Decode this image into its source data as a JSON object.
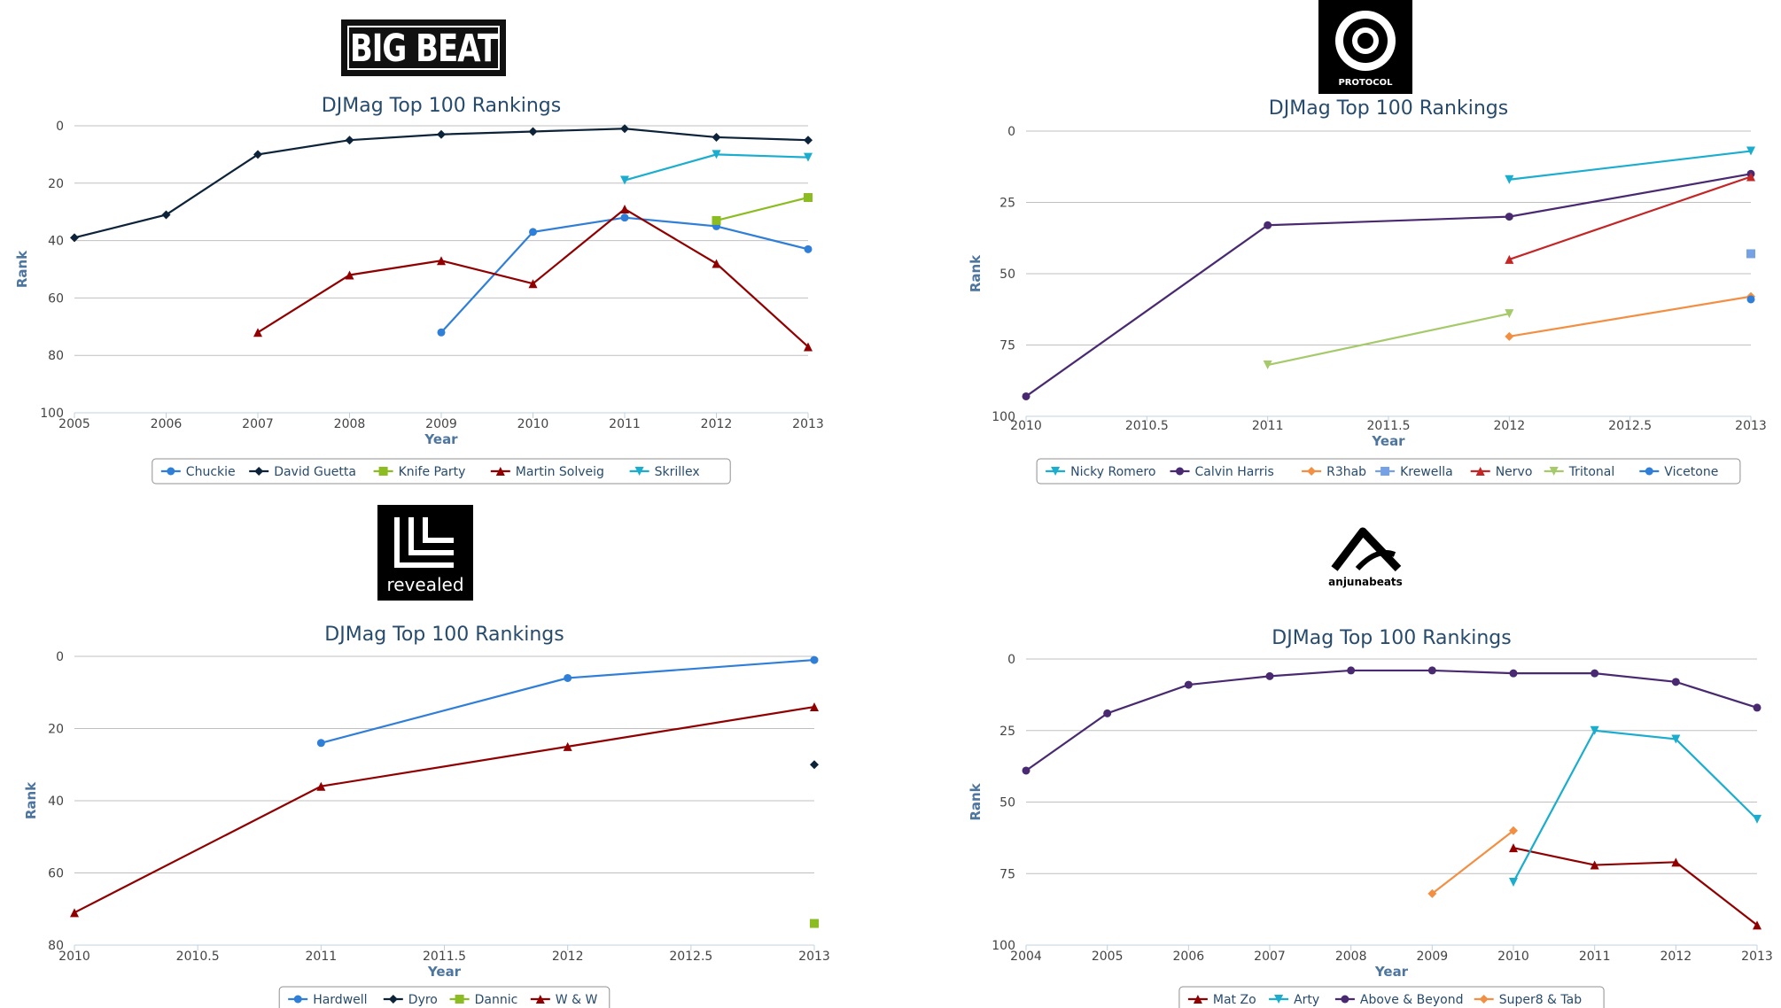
{
  "charts": [
    {
      "key": "bigbeat",
      "logo": {
        "label": "BIG BEAT",
        "style": "boxed-text"
      },
      "chart_data": {
        "type": "line",
        "title": "DJMag Top 100 Rankings",
        "xlabel": "Year",
        "ylabel": "Rank",
        "xlim": [
          2005,
          2013
        ],
        "ylim": [
          0,
          100
        ],
        "y_reversed": true,
        "xticks": [
          "2005",
          "2006",
          "2007",
          "2008",
          "2009",
          "2010",
          "2011",
          "2012",
          "2013"
        ],
        "yticks": [
          "0",
          "20",
          "40",
          "60",
          "80",
          "100"
        ],
        "legend_position": "bottom-center",
        "series": [
          {
            "name": "Chuckie",
            "color": "#2f7ed8",
            "marker": "circle",
            "x": [
              2009,
              2010,
              2011,
              2012,
              2013
            ],
            "y": [
              72,
              37,
              32,
              35,
              43
            ]
          },
          {
            "name": "David Guetta",
            "color": "#0d233a",
            "marker": "diamond",
            "x": [
              2005,
              2006,
              2007,
              2008,
              2009,
              2010,
              2011,
              2012,
              2013
            ],
            "y": [
              39,
              31,
              10,
              5,
              3,
              2,
              1,
              4,
              5
            ]
          },
          {
            "name": "Knife Party",
            "color": "#8bbc21",
            "marker": "square",
            "x": [
              2012,
              2013
            ],
            "y": [
              33,
              25
            ]
          },
          {
            "name": "Martin Solveig",
            "color": "#910000",
            "marker": "triangle",
            "x": [
              2007,
              2008,
              2009,
              2010,
              2011,
              2012,
              2013
            ],
            "y": [
              72,
              52,
              47,
              55,
              29,
              48,
              77
            ]
          },
          {
            "name": "Skrillex",
            "color": "#1aadce",
            "marker": "triangle-down",
            "x": [
              2011,
              2012,
              2013
            ],
            "y": [
              19,
              10,
              11
            ]
          }
        ]
      }
    },
    {
      "key": "protocol",
      "logo": {
        "label": "PROTOCOL",
        "style": "ring"
      },
      "chart_data": {
        "type": "line",
        "title": "DJMag Top 100 Rankings",
        "xlabel": "Year",
        "ylabel": "Rank",
        "xlim": [
          2010,
          2013
        ],
        "ylim": [
          0,
          100
        ],
        "y_reversed": true,
        "xticks": [
          "2010",
          "2010.5",
          "2011",
          "2011.5",
          "2012",
          "2012.5",
          "2013"
        ],
        "yticks": [
          "0",
          "25",
          "50",
          "75",
          "100"
        ],
        "legend_position": "bottom-center",
        "series": [
          {
            "name": "Nicky Romero",
            "color": "#1aadce",
            "marker": "triangle-down",
            "x": [
              2012,
              2013
            ],
            "y": [
              17,
              7
            ]
          },
          {
            "name": "Calvin Harris",
            "color": "#492970",
            "marker": "circle",
            "x": [
              2010,
              2011,
              2012,
              2013
            ],
            "y": [
              93,
              33,
              30,
              15
            ]
          },
          {
            "name": "R3hab",
            "color": "#f28f43",
            "marker": "diamond",
            "x": [
              2012,
              2013
            ],
            "y": [
              72,
              58
            ]
          },
          {
            "name": "Krewella",
            "color": "#77a1e5",
            "marker": "square",
            "x": [
              2013
            ],
            "y": [
              43
            ]
          },
          {
            "name": "Nervo",
            "color": "#c42525",
            "marker": "triangle",
            "x": [
              2012,
              2013
            ],
            "y": [
              45,
              16
            ]
          },
          {
            "name": "Tritonal",
            "color": "#a6c96a",
            "marker": "triangle-down",
            "x": [
              2011,
              2012
            ],
            "y": [
              82,
              64
            ]
          },
          {
            "name": "Vicetone",
            "color": "#2f7ed8",
            "marker": "circle",
            "x": [
              2013
            ],
            "y": [
              59
            ]
          }
        ]
      }
    },
    {
      "key": "revealed",
      "logo": {
        "label": "revealed",
        "style": "dark-tile"
      },
      "chart_data": {
        "type": "line",
        "title": "DJMag Top 100 Rankings",
        "xlabel": "Year",
        "ylabel": "Rank",
        "xlim": [
          2010,
          2013
        ],
        "ylim": [
          0,
          80
        ],
        "y_reversed": true,
        "xticks": [
          "2010",
          "2010.5",
          "2011",
          "2011.5",
          "2012",
          "2012.5",
          "2013"
        ],
        "yticks": [
          "0",
          "20",
          "40",
          "60",
          "80"
        ],
        "legend_position": "bottom-center",
        "series": [
          {
            "name": "Hardwell",
            "color": "#2f7ed8",
            "marker": "circle",
            "x": [
              2011,
              2012,
              2013
            ],
            "y": [
              24,
              6,
              1
            ]
          },
          {
            "name": "Dyro",
            "color": "#0d233a",
            "marker": "diamond",
            "x": [
              2013
            ],
            "y": [
              30
            ]
          },
          {
            "name": "Dannic",
            "color": "#8bbc21",
            "marker": "square",
            "x": [
              2013
            ],
            "y": [
              74
            ]
          },
          {
            "name": "W & W",
            "color": "#910000",
            "marker": "triangle",
            "x": [
              2010,
              2011,
              2012,
              2013
            ],
            "y": [
              71,
              36,
              25,
              14
            ]
          }
        ]
      }
    },
    {
      "key": "anjunabeats",
      "logo": {
        "label": "anjunabeats",
        "style": "glyph"
      },
      "chart_data": {
        "type": "line",
        "title": "DJMag Top 100 Rankings",
        "xlabel": "Year",
        "ylabel": "Rank",
        "xlim": [
          2004,
          2013
        ],
        "ylim": [
          0,
          100
        ],
        "y_reversed": true,
        "xticks": [
          "2004",
          "2005",
          "2006",
          "2007",
          "2008",
          "2009",
          "2010",
          "2011",
          "2012",
          "2013"
        ],
        "yticks": [
          "0",
          "25",
          "50",
          "75",
          "100"
        ],
        "legend_position": "bottom-center",
        "series": [
          {
            "name": "Mat Zo",
            "color": "#910000",
            "marker": "triangle",
            "x": [
              2010,
              2011,
              2012,
              2013
            ],
            "y": [
              66,
              72,
              71,
              93
            ]
          },
          {
            "name": "Arty",
            "color": "#1aadce",
            "marker": "triangle-down",
            "x": [
              2010,
              2011,
              2012,
              2013
            ],
            "y": [
              78,
              25,
              28,
              56
            ]
          },
          {
            "name": "Above & Beyond",
            "color": "#492970",
            "marker": "circle",
            "x": [
              2004,
              2005,
              2006,
              2007,
              2008,
              2009,
              2010,
              2011,
              2012,
              2013
            ],
            "y": [
              39,
              19,
              9,
              6,
              4,
              4,
              5,
              5,
              8,
              17
            ]
          },
          {
            "name": "Super8 & Tab",
            "color": "#f28f43",
            "marker": "diamond",
            "x": [
              2009,
              2010
            ],
            "y": [
              82,
              60
            ]
          }
        ]
      }
    }
  ]
}
